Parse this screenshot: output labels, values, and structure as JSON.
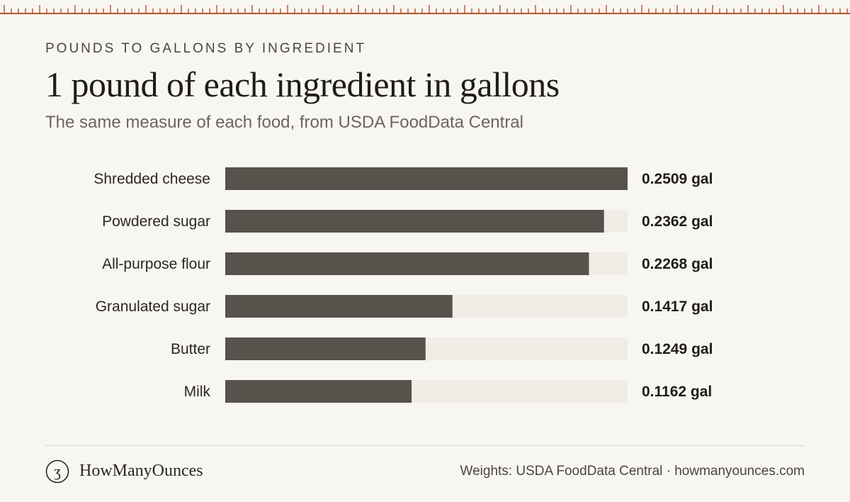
{
  "header": {
    "eyebrow": "POUNDS TO GALLONS BY INGREDIENT",
    "title": "1 pound of each ingredient in gallons",
    "subtitle": "The same measure of each food, from USDA FoodData Central"
  },
  "chart_data": {
    "type": "bar",
    "orientation": "horizontal",
    "categories": [
      "Shredded cheese",
      "Powdered sugar",
      "All-purpose flour",
      "Granulated sugar",
      "Butter",
      "Milk"
    ],
    "values": [
      0.2509,
      0.2362,
      0.2268,
      0.1417,
      0.1249,
      0.1162
    ],
    "value_labels": [
      "0.2509 gal",
      "0.2362 gal",
      "0.2268 gal",
      "0.1417 gal",
      "0.1249 gal",
      "0.1162 gal"
    ],
    "unit": "gal",
    "xlim": [
      0,
      0.2509
    ],
    "grid": false,
    "legend": "none"
  },
  "footer": {
    "brand": "HowManyOunces",
    "logo_glyph": "ʒ",
    "credit": "Weights: USDA FoodData Central · howmanyounces.com"
  },
  "colors": {
    "background": "#f8f6f1",
    "bar": "#57524c",
    "track": "#f0ede6",
    "ruler": "#b5552a"
  }
}
